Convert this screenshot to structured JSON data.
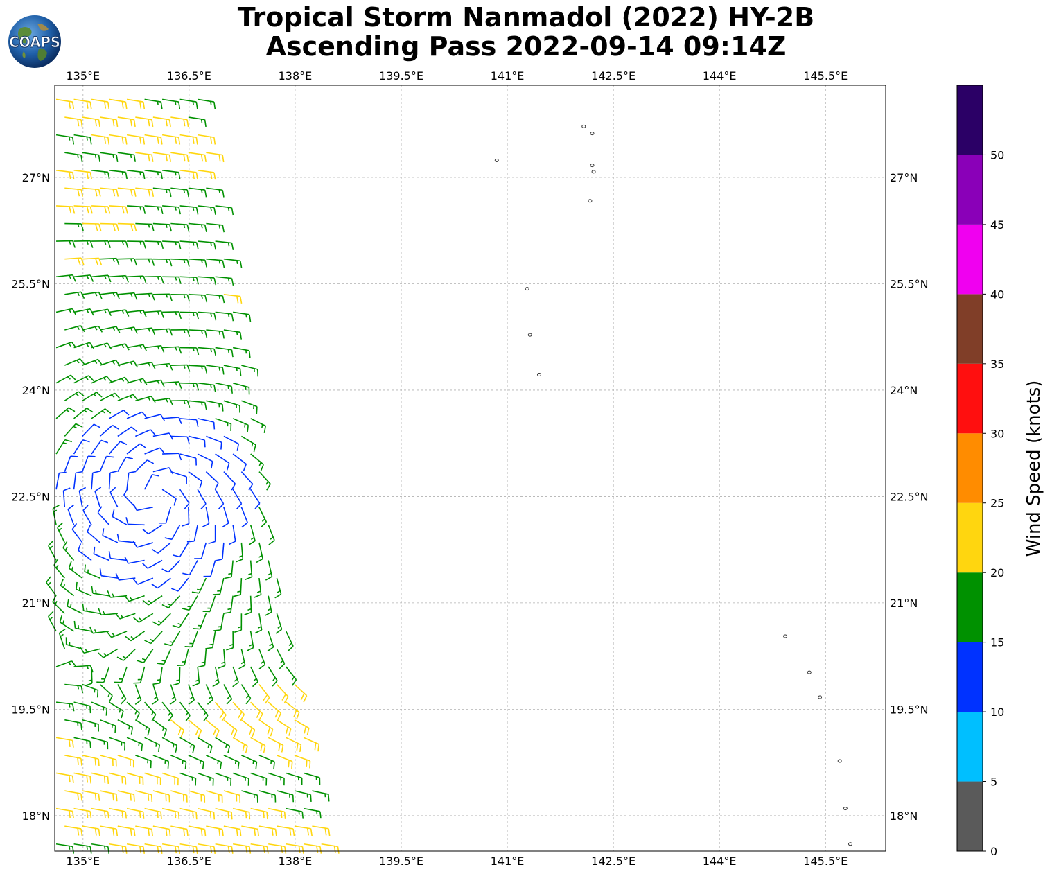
{
  "title": {
    "line1": "Tropical Storm Nanmadol (2022) HY-2B",
    "line2": "Ascending Pass 2022-09-14 09:14Z"
  },
  "logo": {
    "text": "COAPS",
    "icon": "globe-icon"
  },
  "map": {
    "lon_range": [
      134.6,
      146.35
    ],
    "lat_range": [
      17.5,
      28.3
    ],
    "lon_ticks": [
      "135°E",
      "136.5°E",
      "138°E",
      "139.5°E",
      "141°E",
      "142.5°E",
      "144°E",
      "145.5°E"
    ],
    "lat_ticks": [
      "27°N",
      "25.5°N",
      "24°N",
      "22.5°N",
      "21°N",
      "19.5°N",
      "18°N"
    ],
    "lon_tick_values": [
      135,
      136.5,
      138,
      139.5,
      141,
      142.5,
      144,
      145.5
    ],
    "lat_tick_values": [
      27,
      25.5,
      24,
      22.5,
      21,
      19.5,
      18
    ],
    "gridlines": true,
    "swath_edges": {
      "west_lon": 134.6,
      "east_lon_at_lat_17_6": 138.45,
      "east_lon_at_lat_28_3": 136.6
    }
  },
  "colorbar": {
    "label": "Wind Speed (knots)",
    "tick_labels": [
      "0",
      "5",
      "10",
      "15",
      "20",
      "25",
      "30",
      "35",
      "40",
      "45",
      "50"
    ],
    "bins": [
      {
        "min": 0,
        "max": 5,
        "color": "#5a5a5a"
      },
      {
        "min": 5,
        "max": 10,
        "color": "#00bfff"
      },
      {
        "min": 10,
        "max": 15,
        "color": "#0032ff"
      },
      {
        "min": 15,
        "max": 20,
        "color": "#009100"
      },
      {
        "min": 20,
        "max": 25,
        "color": "#ffd60f"
      },
      {
        "min": 25,
        "max": 30,
        "color": "#ff8c00"
      },
      {
        "min": 30,
        "max": 35,
        "color": "#ff0f0f"
      },
      {
        "min": 35,
        "max": 40,
        "color": "#803e28"
      },
      {
        "min": 40,
        "max": 45,
        "color": "#f000f0"
      },
      {
        "min": 45,
        "max": 50,
        "color": "#8a00b8"
      },
      {
        "min": 50,
        "max": 55,
        "color": "#2b0066"
      }
    ]
  },
  "storm_center": {
    "lon": 136.0,
    "lat": 22.5
  },
  "islands": [
    {
      "lon": 142.08,
      "lat": 27.72
    },
    {
      "lon": 142.2,
      "lat": 27.62
    },
    {
      "lon": 140.85,
      "lat": 27.24
    },
    {
      "lon": 142.2,
      "lat": 27.17
    },
    {
      "lon": 142.22,
      "lat": 27.08
    },
    {
      "lon": 142.17,
      "lat": 26.67
    },
    {
      "lon": 141.28,
      "lat": 25.43
    },
    {
      "lon": 141.32,
      "lat": 24.78
    },
    {
      "lon": 141.45,
      "lat": 24.22
    },
    {
      "lon": 144.93,
      "lat": 20.53
    },
    {
      "lon": 145.27,
      "lat": 20.02
    },
    {
      "lon": 145.42,
      "lat": 19.67
    },
    {
      "lon": 145.7,
      "lat": 18.77
    },
    {
      "lon": 145.78,
      "lat": 18.1
    },
    {
      "lon": 145.85,
      "lat": 17.6
    }
  ]
}
